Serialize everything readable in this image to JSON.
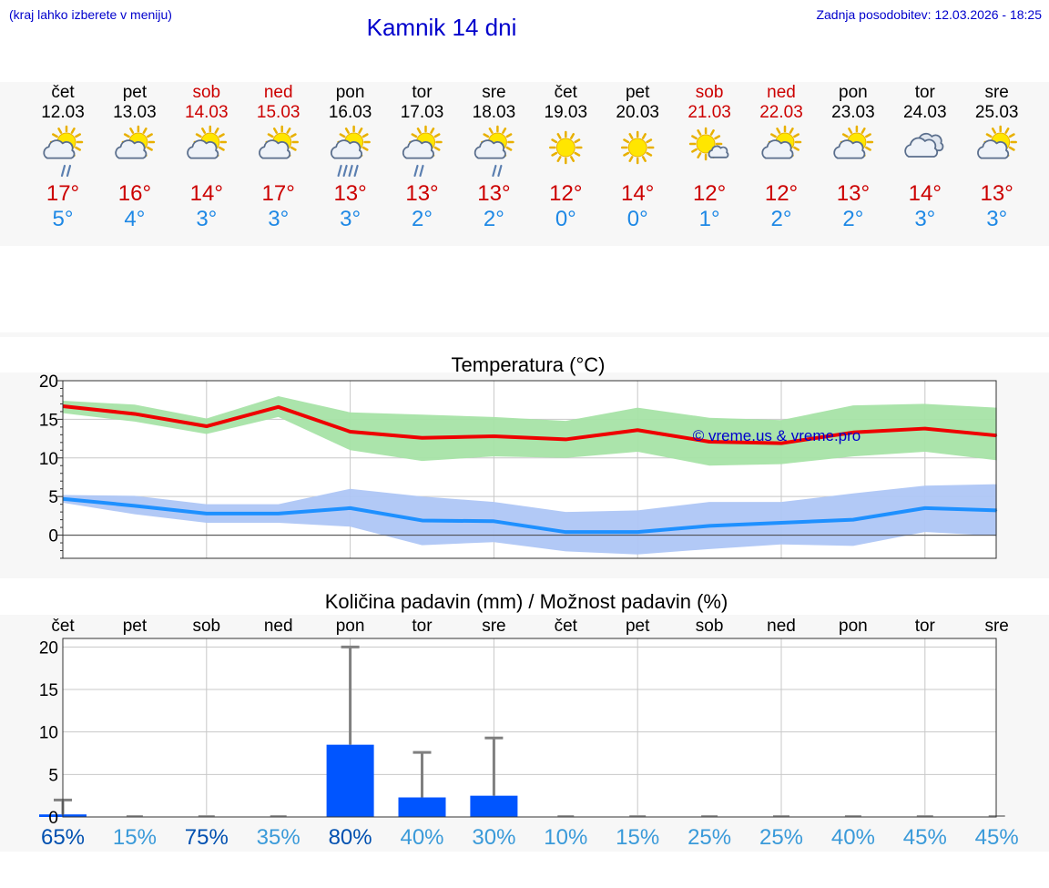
{
  "header": {
    "hint": "(kraj lahko izberete v meniju)",
    "title": "Kamnik 14 dni",
    "updated_label": "Zadnja posodobitev:",
    "updated_value": "12.03.2026 - 18:25"
  },
  "colors": {
    "link": "#0000cc",
    "weekend": "#cc0000",
    "max_temp": "#cc0000",
    "min_temp": "#1e88e5",
    "max_band": "#a6e3a6",
    "min_band": "#aec6f5",
    "max_line": "#ee0000",
    "min_line": "#1e90ff",
    "precip_bar": "#0055ff",
    "whisker": "#808080"
  },
  "forecast": [
    {
      "day": "čet",
      "date": "12.03",
      "weekend": false,
      "icon": "sun-cloud-light-rain-icon",
      "tmax": "17°",
      "tmin": "5°"
    },
    {
      "day": "pet",
      "date": "13.03",
      "weekend": false,
      "icon": "sun-cloud-icon",
      "tmax": "16°",
      "tmin": "4°"
    },
    {
      "day": "sob",
      "date": "14.03",
      "weekend": true,
      "icon": "sun-cloud-icon",
      "tmax": "14°",
      "tmin": "3°"
    },
    {
      "day": "ned",
      "date": "15.03",
      "weekend": true,
      "icon": "sun-cloud-icon",
      "tmax": "17°",
      "tmin": "3°"
    },
    {
      "day": "pon",
      "date": "16.03",
      "weekend": false,
      "icon": "sun-cloud-heavy-rain-icon",
      "tmax": "13°",
      "tmin": "3°"
    },
    {
      "day": "tor",
      "date": "17.03",
      "weekend": false,
      "icon": "sun-cloud-rain-icon",
      "tmax": "13°",
      "tmin": "2°"
    },
    {
      "day": "sre",
      "date": "18.03",
      "weekend": false,
      "icon": "sun-cloud-light-rain-icon",
      "tmax": "13°",
      "tmin": "2°"
    },
    {
      "day": "čet",
      "date": "19.03",
      "weekend": false,
      "icon": "sun-icon",
      "tmax": "12°",
      "tmin": "0°"
    },
    {
      "day": "pet",
      "date": "20.03",
      "weekend": false,
      "icon": "sun-icon",
      "tmax": "14°",
      "tmin": "0°"
    },
    {
      "day": "sob",
      "date": "21.03",
      "weekend": true,
      "icon": "sun-small-cloud-icon",
      "tmax": "12°",
      "tmin": "1°"
    },
    {
      "day": "ned",
      "date": "22.03",
      "weekend": true,
      "icon": "sun-cloud-icon",
      "tmax": "12°",
      "tmin": "2°"
    },
    {
      "day": "pon",
      "date": "23.03",
      "weekend": false,
      "icon": "sun-cloud-icon",
      "tmax": "13°",
      "tmin": "2°"
    },
    {
      "day": "tor",
      "date": "24.03",
      "weekend": false,
      "icon": "cloudy-icon",
      "tmax": "14°",
      "tmin": "3°"
    },
    {
      "day": "sre",
      "date": "25.03",
      "weekend": false,
      "icon": "sun-cloud-icon",
      "tmax": "13°",
      "tmin": "3°"
    }
  ],
  "chart_data": [
    {
      "type": "line",
      "title": "Temperatura (°C)",
      "watermark": "© vreme.us & vreme.pro",
      "ylim": [
        -3,
        20
      ],
      "yticks": [
        0,
        5,
        10,
        15,
        20
      ],
      "x": [
        0,
        1,
        2,
        3,
        4,
        5,
        6,
        7,
        8,
        9,
        10,
        11,
        12,
        13
      ],
      "series": [
        {
          "name": "max",
          "values": [
            16.7,
            15.7,
            14.1,
            16.6,
            13.4,
            12.6,
            12.8,
            12.4,
            13.6,
            12.1,
            11.9,
            13.3,
            13.8,
            12.9
          ],
          "band_low": [
            15.8,
            14.7,
            13.1,
            15.3,
            11.0,
            9.6,
            10.2,
            10.0,
            10.8,
            9.0,
            9.2,
            10.2,
            10.8,
            9.7
          ],
          "band_high": [
            17.4,
            16.9,
            15.1,
            18.0,
            15.9,
            15.6,
            15.3,
            14.8,
            16.5,
            15.2,
            14.9,
            16.8,
            17.0,
            16.5
          ]
        },
        {
          "name": "min",
          "values": [
            4.7,
            3.8,
            2.8,
            2.8,
            3.5,
            1.9,
            1.8,
            0.4,
            0.4,
            1.2,
            1.6,
            2.0,
            3.5,
            3.2
          ],
          "band_low": [
            4.2,
            2.7,
            1.6,
            1.6,
            1.1,
            -1.3,
            -0.9,
            -2.1,
            -2.5,
            -1.8,
            -1.2,
            -1.4,
            0.4,
            -0.1
          ],
          "band_high": [
            5.2,
            5.1,
            4.0,
            4.0,
            6.0,
            5.0,
            4.3,
            3.0,
            3.2,
            4.3,
            4.3,
            5.4,
            6.4,
            6.6
          ]
        }
      ]
    },
    {
      "type": "bar",
      "title": "Količina padavin (mm) / Možnost padavin (%)",
      "categories": [
        "čet",
        "pet",
        "sob",
        "ned",
        "pon",
        "tor",
        "sre",
        "čet",
        "pet",
        "sob",
        "ned",
        "pon",
        "tor",
        "sre"
      ],
      "ylim": [
        0,
        21
      ],
      "yticks": [
        0,
        5,
        10,
        15,
        20
      ],
      "values": [
        0.3,
        0,
        0,
        0,
        8.5,
        2.3,
        2.5,
        0,
        0,
        0,
        0,
        0,
        0,
        0
      ],
      "whisker_max": [
        2.0,
        0,
        0,
        0,
        20,
        7.6,
        9.3,
        0,
        0,
        0,
        0,
        0,
        0,
        0
      ],
      "probability": [
        "65%",
        "15%",
        "75%",
        "35%",
        "80%",
        "40%",
        "30%",
        "10%",
        "15%",
        "25%",
        "25%",
        "40%",
        "45%",
        "45%"
      ]
    }
  ]
}
